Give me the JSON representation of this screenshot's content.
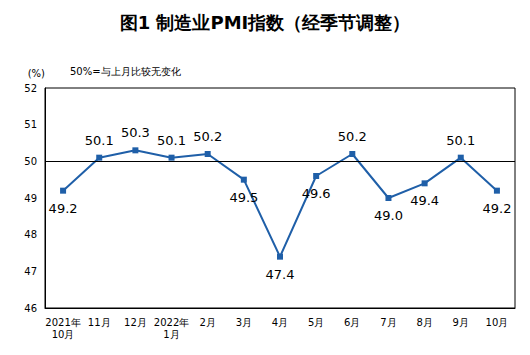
{
  "chart_data": {
    "type": "line",
    "title": "图1 制造业PMI指数（经季节调整）",
    "y_label": "(%)",
    "annotations": [
      "50%=与上月比较无变化"
    ],
    "categories": [
      "2021年\n10月",
      "11月",
      "12月",
      "2022年\n1月",
      "2月",
      "3月",
      "4月",
      "5月",
      "6月",
      "7月",
      "8月",
      "9月",
      "10月"
    ],
    "values": [
      49.2,
      50.1,
      50.3,
      50.1,
      50.2,
      49.5,
      47.4,
      49.6,
      50.2,
      49.0,
      49.4,
      50.1,
      49.2
    ],
    "value_labels": [
      "49.2",
      "50.1",
      "50.3",
      "50.1",
      "50.2",
      "49.5",
      "47.4",
      "49.6",
      "50.2",
      "49.0",
      "49.4",
      "50.1",
      "49.2"
    ],
    "reference_line": 50,
    "color": "#1f5fa8",
    "marker": "square",
    "ylim": [
      46,
      52
    ],
    "yticks": [
      46,
      47,
      48,
      49,
      50,
      51,
      52
    ],
    "grid": false,
    "data_labels": true
  }
}
